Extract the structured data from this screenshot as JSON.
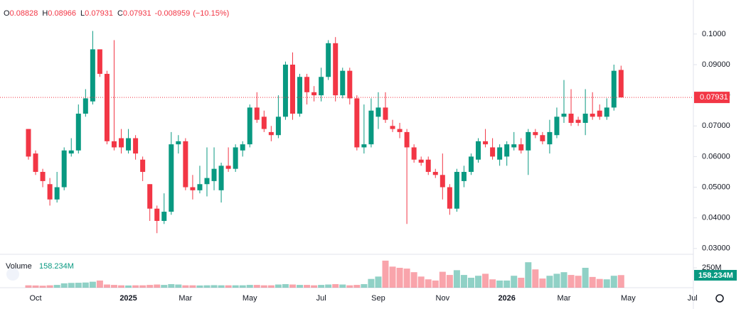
{
  "chart_data": {
    "type": "candlestick",
    "header": {
      "labels": [
        "O",
        "H",
        "L",
        "C"
      ],
      "change": -0.008959,
      "change_pct": {
        "value": -10.15,
        "label": "(−10.15%)"
      }
    },
    "volume_title": "Volume",
    "volume_last_label": {
      "value": 158.234,
      "label": "158.234M"
    },
    "categories": [
      null,
      "Oct",
      null,
      null,
      null,
      null,
      null,
      null,
      null,
      null,
      null,
      null,
      null,
      null,
      "2025",
      null,
      null,
      null,
      null,
      null,
      null,
      null,
      "Mar",
      null,
      null,
      null,
      null,
      null,
      null,
      null,
      null,
      "May",
      null,
      null,
      null,
      null,
      null,
      null,
      null,
      null,
      null,
      "Jul",
      null,
      null,
      null,
      null,
      null,
      null,
      null,
      "Sep",
      null,
      null,
      null,
      null,
      null,
      null,
      null,
      null,
      "Nov",
      null,
      null,
      null,
      null,
      null,
      null,
      null,
      null,
      "2026",
      null,
      null,
      null,
      null,
      null,
      null,
      null,
      "Mar",
      null,
      null,
      null,
      null,
      null,
      null,
      null,
      null,
      "May",
      null,
      null,
      null,
      null,
      null,
      null,
      null,
      null,
      "Jul"
    ],
    "open": [
      0.069,
      0.061,
      0.055,
      0.051,
      0.046,
      0.05,
      0.061,
      0.062,
      0.074,
      0.078,
      0.095,
      0.087,
      0.065,
      0.066,
      0.062,
      0.066,
      0.059,
      0.051,
      0.043,
      0.039,
      0.042,
      0.064,
      0.065,
      0.05,
      0.049,
      0.051,
      0.052,
      0.049,
      0.057,
      0.056,
      0.062,
      0.064,
      0.076,
      0.073,
      0.068,
      0.067,
      0.073,
      0.09,
      0.074,
      0.086,
      0.081,
      0.08,
      0.086,
      0.097,
      0.08,
      0.088,
      0.079,
      0.063,
      0.064,
      0.073,
      0.076,
      0.07,
      0.069,
      0.068,
      0.063,
      0.059,
      0.059,
      0.055,
      0.054,
      0.05,
      0.043,
      0.052,
      0.055,
      0.059,
      0.065,
      0.063,
      0.059,
      0.06,
      0.063,
      0.064,
      0.062,
      0.068,
      0.067,
      0.064,
      0.067,
      0.073,
      0.074,
      0.072,
      0.071,
      0.074,
      0.075,
      0.073,
      0.076,
      0.08828,
      null,
      null,
      null,
      null,
      null,
      null,
      null,
      null,
      null,
      null
    ],
    "high": [
      0.069,
      0.062,
      0.056,
      0.053,
      0.055,
      0.063,
      0.066,
      0.077,
      0.082,
      0.101,
      0.095,
      0.088,
      0.098,
      0.069,
      0.069,
      0.067,
      0.06,
      0.051,
      0.044,
      0.048,
      0.068,
      0.067,
      0.066,
      0.054,
      0.057,
      0.063,
      0.063,
      0.058,
      0.063,
      0.064,
      0.065,
      0.077,
      0.081,
      0.075,
      0.07,
      0.08,
      0.091,
      0.094,
      0.087,
      0.087,
      0.083,
      0.089,
      0.098,
      0.099,
      0.089,
      0.089,
      0.08,
      0.077,
      0.079,
      0.081,
      0.081,
      0.072,
      0.071,
      0.069,
      0.064,
      0.06,
      0.06,
      0.056,
      0.061,
      0.051,
      0.056,
      0.057,
      0.061,
      0.066,
      0.069,
      0.066,
      0.064,
      0.065,
      0.068,
      0.066,
      0.069,
      0.069,
      0.068,
      0.072,
      0.076,
      0.085,
      0.082,
      0.073,
      0.082,
      0.081,
      0.077,
      0.079,
      0.09,
      0.08966,
      null,
      null,
      null,
      null,
      null,
      null,
      null,
      null,
      null,
      null
    ],
    "low": [
      0.059,
      0.054,
      0.05,
      0.044,
      0.045,
      0.049,
      0.06,
      0.061,
      0.073,
      0.077,
      0.086,
      0.064,
      0.062,
      0.061,
      0.061,
      0.059,
      0.052,
      0.039,
      0.035,
      0.038,
      0.041,
      0.061,
      0.049,
      0.046,
      0.048,
      0.047,
      0.049,
      0.045,
      0.055,
      0.055,
      0.06,
      0.063,
      0.071,
      0.068,
      0.065,
      0.066,
      0.072,
      0.072,
      0.073,
      0.077,
      0.078,
      0.078,
      0.085,
      0.078,
      0.079,
      0.077,
      0.062,
      0.061,
      0.063,
      0.069,
      0.071,
      0.068,
      0.066,
      0.038,
      0.058,
      0.057,
      0.054,
      0.053,
      0.046,
      0.041,
      0.042,
      0.05,
      0.054,
      0.058,
      0.063,
      0.059,
      0.057,
      0.057,
      0.062,
      0.061,
      0.054,
      0.066,
      0.064,
      0.061,
      0.066,
      0.071,
      0.07,
      0.07,
      0.067,
      0.072,
      0.072,
      0.072,
      0.075,
      0.07931,
      null,
      null,
      null,
      null,
      null,
      null,
      null,
      null,
      null,
      null
    ],
    "close": [
      0.06,
      0.055,
      0.052,
      0.046,
      0.05,
      0.062,
      0.062,
      0.074,
      0.079,
      0.095,
      0.087,
      0.065,
      0.063,
      0.063,
      0.066,
      0.061,
      0.055,
      0.043,
      0.039,
      0.042,
      0.064,
      0.065,
      0.05,
      0.049,
      0.051,
      0.053,
      0.056,
      0.057,
      0.056,
      0.063,
      0.064,
      0.076,
      0.072,
      0.069,
      0.067,
      0.073,
      0.09,
      0.074,
      0.086,
      0.081,
      0.08,
      0.086,
      0.097,
      0.08,
      0.088,
      0.079,
      0.063,
      0.064,
      0.075,
      0.076,
      0.072,
      0.069,
      0.068,
      0.063,
      0.059,
      0.058,
      0.055,
      0.054,
      0.05,
      0.043,
      0.055,
      0.055,
      0.06,
      0.065,
      0.064,
      0.06,
      0.063,
      0.064,
      0.064,
      0.062,
      0.068,
      0.067,
      0.065,
      0.068,
      0.073,
      0.074,
      0.071,
      0.071,
      0.074,
      0.073,
      0.073,
      0.076,
      0.088,
      0.07931,
      null,
      null,
      null,
      null,
      null,
      null,
      null,
      null,
      null,
      null
    ],
    "volume": [
      30,
      28,
      25,
      30,
      35,
      55,
      60,
      62,
      65,
      75,
      90,
      40,
      35,
      30,
      28,
      30,
      30,
      35,
      40,
      35,
      45,
      40,
      30,
      30,
      28,
      30,
      32,
      30,
      30,
      30,
      30,
      35,
      35,
      30,
      30,
      40,
      45,
      40,
      35,
      35,
      30,
      35,
      40,
      45,
      40,
      30,
      35,
      45,
      110,
      140,
      340,
      265,
      250,
      240,
      195,
      140,
      105,
      90,
      200,
      160,
      220,
      160,
      125,
      150,
      175,
      105,
      90,
      90,
      150,
      125,
      320,
      230,
      115,
      150,
      175,
      195,
      160,
      150,
      250,
      135,
      110,
      105,
      150,
      158.234,
      null,
      null,
      null,
      null,
      null,
      null,
      null,
      null,
      null,
      null
    ],
    "up_color": "#089981",
    "down_color": "#f23645",
    "ylim": [
      0.0281,
      0.1111
    ],
    "yticks": [
      {
        "value": 0.1,
        "label": "0.1000"
      },
      {
        "value": 0.09,
        "label": "0.09000"
      },
      {
        "value": 0.08,
        "label": "0.08000"
      },
      {
        "value": 0.07,
        "label": "0.07000"
      },
      {
        "value": 0.06,
        "label": "0.06000"
      },
      {
        "value": 0.05,
        "label": "0.05000"
      },
      {
        "value": 0.04,
        "label": "0.04000"
      },
      {
        "value": 0.03,
        "label": "0.03000"
      }
    ],
    "volume_ticks": [
      {
        "value": 250,
        "label": "250M"
      }
    ]
  }
}
